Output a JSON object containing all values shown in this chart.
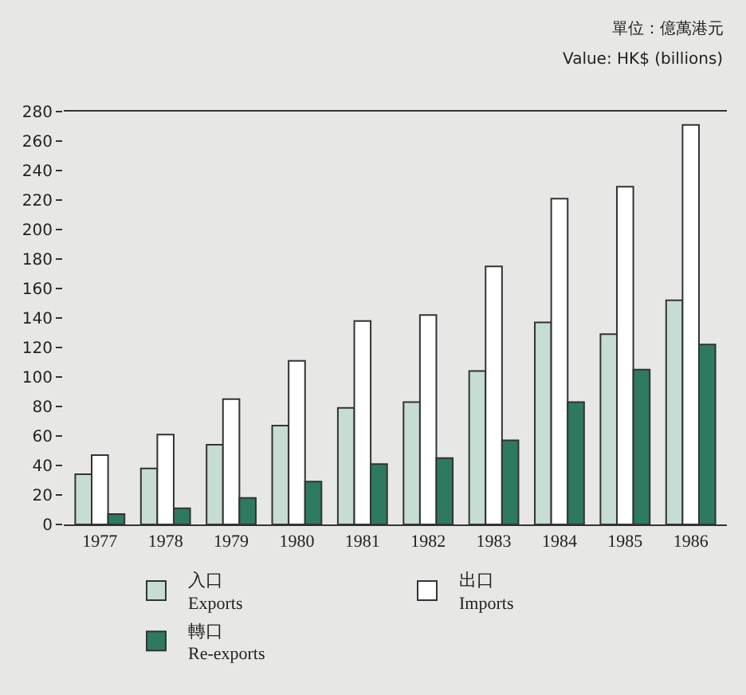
{
  "chart_data": {
    "type": "bar",
    "annotations": [
      "單位：億萬港元",
      "Value: HK$ (billions)"
    ],
    "categories": [
      "1977",
      "1978",
      "1979",
      "1980",
      "1981",
      "1982",
      "1983",
      "1984",
      "1985",
      "1986"
    ],
    "series": [
      {
        "name": "入口\nExports",
        "color": "#c5ddd3",
        "values": [
          34,
          38,
          54,
          67,
          79,
          83,
          104,
          137,
          129,
          152
        ]
      },
      {
        "name": "出口\nImports",
        "color": "#ffffff",
        "values": [
          47,
          61,
          85,
          111,
          138,
          142,
          175,
          221,
          229,
          271
        ]
      },
      {
        "name": "轉口\nRe-exports",
        "color": "#2e7a60",
        "values": [
          7,
          11,
          18,
          29,
          41,
          45,
          57,
          83,
          105,
          122
        ]
      }
    ],
    "ylim": [
      0,
      280
    ],
    "yticks": [
      0,
      20,
      40,
      60,
      80,
      100,
      120,
      140,
      160,
      180,
      200,
      220,
      240,
      260,
      280
    ],
    "grid": false,
    "legend": "bottom"
  }
}
